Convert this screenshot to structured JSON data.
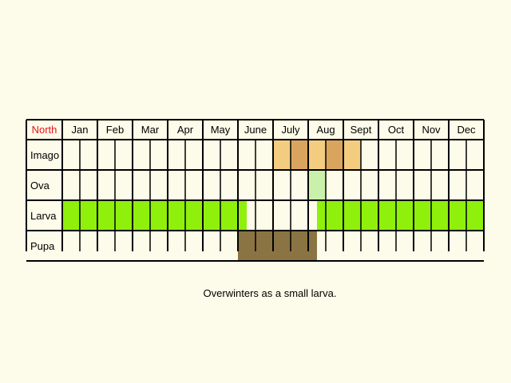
{
  "region_label": "North",
  "months": [
    "Jan",
    "Feb",
    "Mar",
    "Apr",
    "May",
    "June",
    "July",
    "Aug",
    "Sept",
    "Oct",
    "Nov",
    "Dec"
  ],
  "stages": [
    "Imago",
    "Ova",
    "Larva",
    "Pupa"
  ],
  "caption": "Overwinters as a small larva.",
  "colors": {
    "background": "#fdfbe9",
    "grid": "#000000",
    "region_label": "#e8141a",
    "imago_light": "#f3cc80",
    "imago_dark": "#d9a55e",
    "ova": "#c9f1ac",
    "larva": "#8ff00c",
    "pupa": "#8a7443"
  },
  "chart_data": {
    "type": "table",
    "columns_per_month": 2,
    "activity": [
      {
        "stage": "Imago",
        "segments": [
          {
            "from": 12,
            "to": 13,
            "color": "imago_light"
          },
          {
            "from": 13,
            "to": 14,
            "color": "imago_dark"
          },
          {
            "from": 14,
            "to": 15,
            "color": "imago_light"
          },
          {
            "from": 15,
            "to": 16,
            "color": "imago_dark"
          },
          {
            "from": 16,
            "to": 17,
            "color": "imago_light"
          }
        ]
      },
      {
        "stage": "Ova",
        "segments": [
          {
            "from": 14,
            "to": 15,
            "color": "ova"
          }
        ]
      },
      {
        "stage": "Larva",
        "segments": [
          {
            "from": 0,
            "to": 10.5,
            "color": "larva"
          },
          {
            "from": 14.5,
            "to": 24,
            "color": "larva"
          }
        ]
      },
      {
        "stage": "Pupa",
        "segments": [
          {
            "from": 10,
            "to": 14.5,
            "color": "pupa"
          }
        ]
      }
    ]
  }
}
